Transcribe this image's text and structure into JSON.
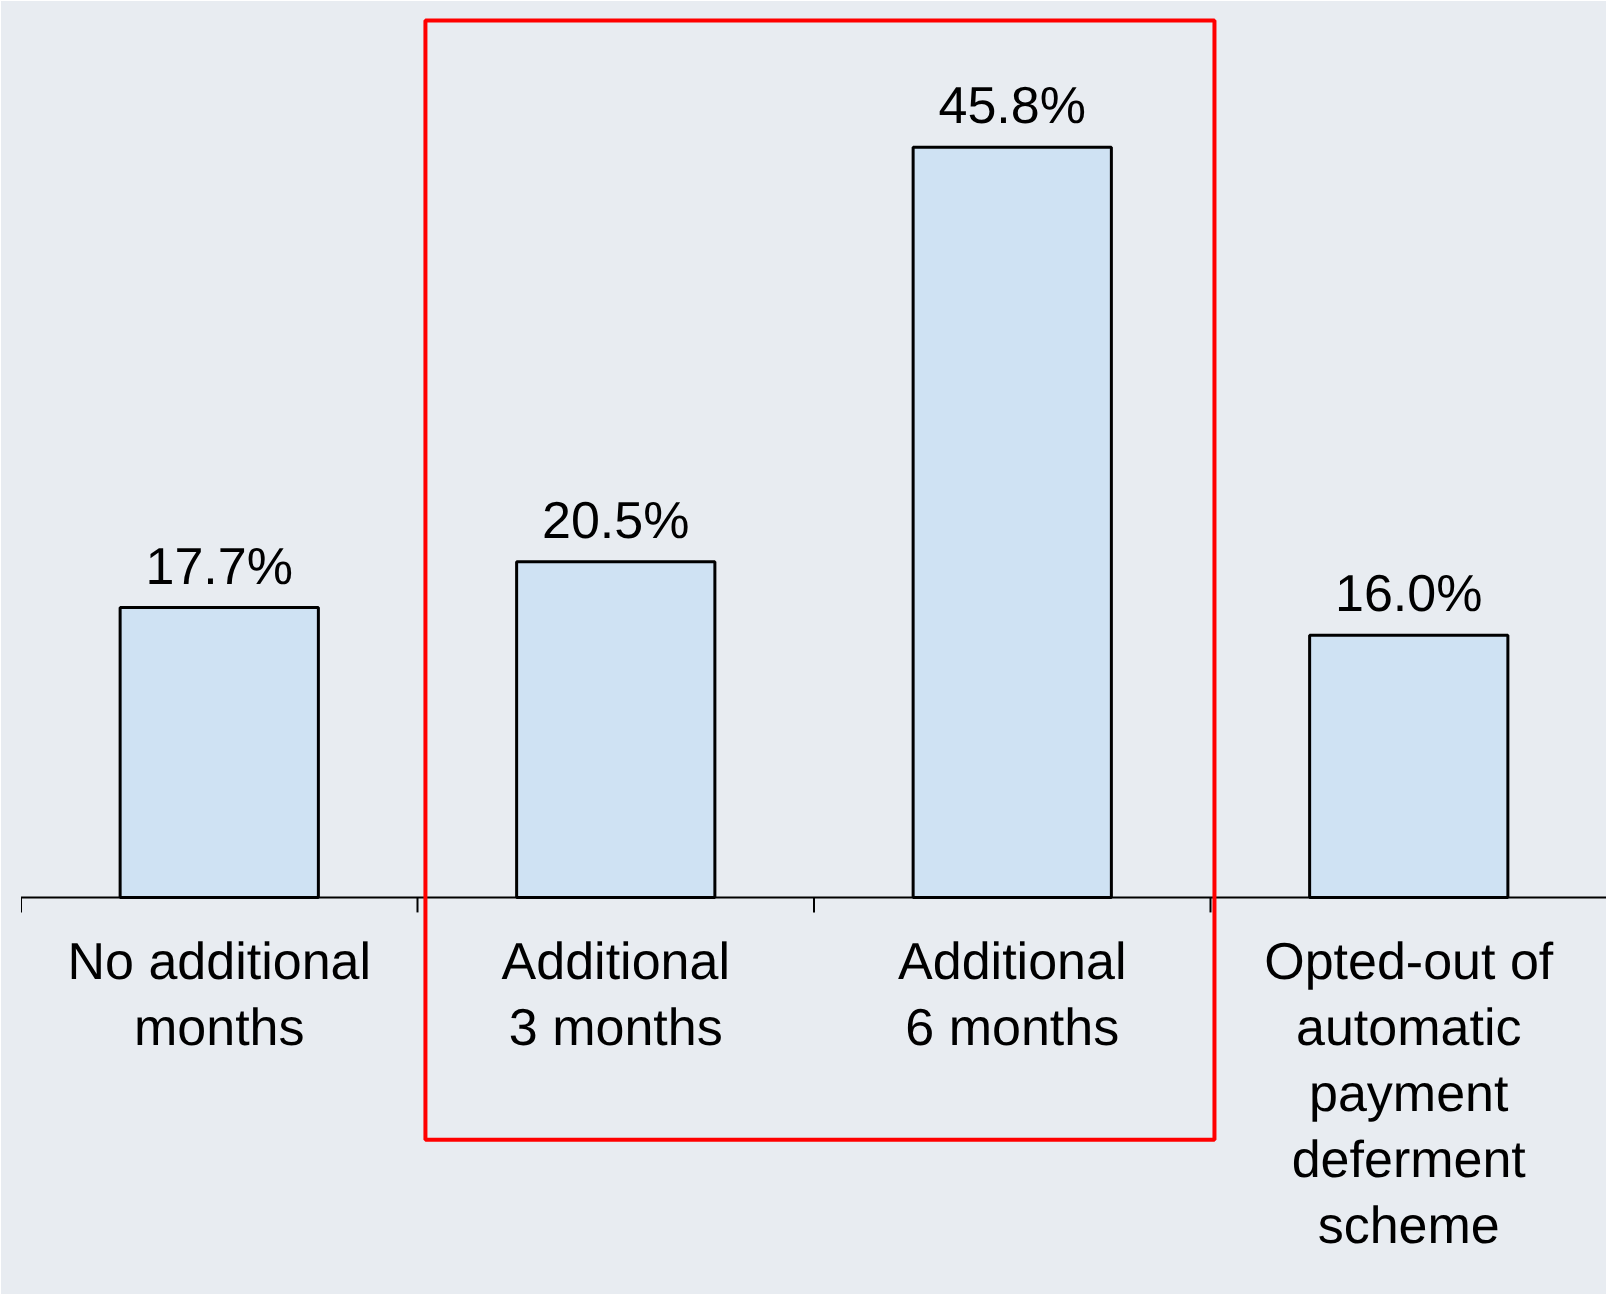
{
  "chart_data": {
    "type": "bar",
    "categories": [
      "No additional\nmonths",
      "Additional\n3 months",
      "Additional\n6 months",
      "Opted-out of\nautomatic\npayment\ndeferment\nscheme"
    ],
    "values": [
      17.7,
      20.5,
      45.8,
      16.0
    ],
    "value_labels": [
      "17.7%",
      "20.5%",
      "45.8%",
      "16.0%"
    ],
    "color": "#cfe2f3",
    "relative": false,
    "grid": false
  }
}
